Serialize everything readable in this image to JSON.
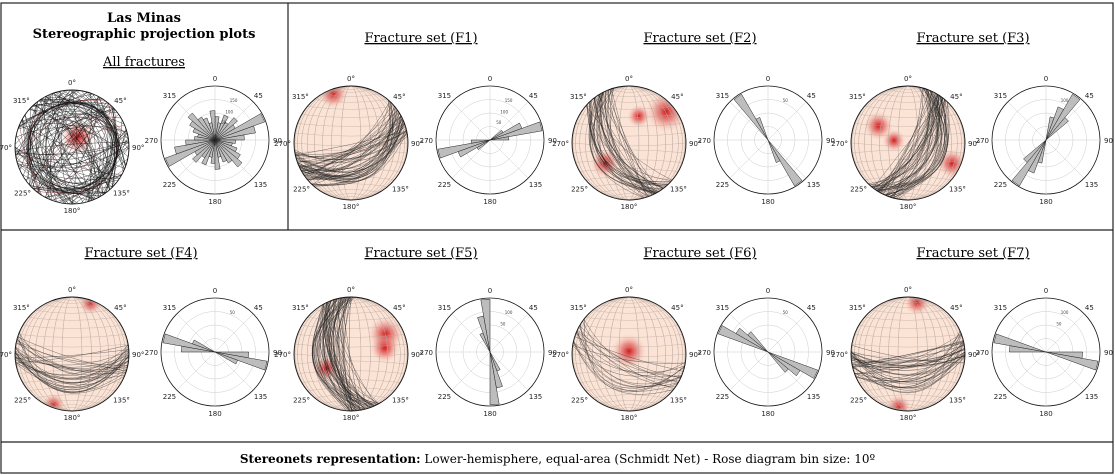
{
  "header": {
    "title_line1": "Las Minas",
    "title_line2": "Stereographic projection plots",
    "all_label": "All fractures"
  },
  "stereo_ticks": {
    "n": "0°",
    "ne": "45°",
    "e": "90°",
    "se": "135°",
    "s": "180°",
    "sw": "225°",
    "w": "270°",
    "nw": "315°"
  },
  "rose_ticks": {
    "n": "0",
    "ne": "45",
    "e": "90",
    "se": "135",
    "s": "180",
    "sw": "225",
    "w": "270",
    "nw": "315"
  },
  "panels": [
    {
      "label": "",
      "azimuths": [],
      "rose": [
        8,
        6,
        9,
        7,
        10,
        8,
        18,
        14,
        10,
        7,
        6,
        8,
        10,
        12,
        9,
        8,
        6,
        10
      ],
      "rose_ticks": [
        "150",
        "100",
        "50"
      ],
      "density": [
        {
          "az": 30,
          "r": 0.2,
          "s": 0.3
        }
      ],
      "gc_count": 140,
      "all": true
    },
    {
      "label": "Fracture set (F1)",
      "azimuths": [
        55,
        70
      ],
      "rose": [
        0,
        0,
        0,
        0,
        0,
        8,
        18,
        28,
        10,
        0,
        0,
        0,
        0,
        0,
        0,
        0,
        0,
        0
      ],
      "rose_ticks": [
        "150",
        "100",
        "50"
      ],
      "density": [
        {
          "az": 340,
          "r": 0.92,
          "s": 0.25
        }
      ],
      "gc_count": 60
    },
    {
      "label": "Fracture set (F2)",
      "azimuths": [
        145,
        150
      ],
      "rose": [
        0,
        0,
        0,
        0,
        0,
        0,
        0,
        0,
        0,
        0,
        0,
        0,
        0,
        0,
        22,
        10,
        0,
        0
      ],
      "rose_ticks": [
        "50"
      ],
      "density": [
        {
          "az": 50,
          "r": 0.85,
          "s": 0.35
        },
        {
          "az": 230,
          "r": 0.55,
          "s": 0.25
        },
        {
          "az": 20,
          "r": 0.5,
          "s": 0.2
        }
      ],
      "gc_count": 45
    },
    {
      "label": "Fracture set (F3)",
      "azimuths": [
        25,
        30
      ],
      "rose": [
        0,
        8,
        12,
        18,
        10,
        0,
        0,
        0,
        0,
        0,
        0,
        0,
        0,
        0,
        0,
        0,
        0,
        0
      ],
      "rose_ticks": [
        "100"
      ],
      "density": [
        {
          "az": 300,
          "r": 0.6,
          "s": 0.25
        },
        {
          "az": 115,
          "r": 0.85,
          "s": 0.25
        },
        {
          "az": 280,
          "r": 0.25,
          "s": 0.2
        }
      ],
      "gc_count": 60
    },
    {
      "label": "Fracture set (F4)",
      "azimuths": [
        95,
        100
      ],
      "rose": [
        0,
        0,
        0,
        0,
        0,
        0,
        0,
        0,
        0,
        14,
        22,
        10,
        0,
        0,
        0,
        0,
        0,
        0
      ],
      "rose_ticks": [
        "50"
      ],
      "density": [
        {
          "az": 20,
          "r": 0.95,
          "s": 0.2
        },
        {
          "az": 200,
          "r": 0.95,
          "s": 0.2
        }
      ],
      "gc_count": 35
    },
    {
      "label": "Fracture set (F5)",
      "azimuths": [
        165,
        170
      ],
      "rose": [
        0,
        0,
        0,
        0,
        0,
        0,
        0,
        0,
        0,
        0,
        0,
        0,
        0,
        0,
        0,
        10,
        18,
        26
      ],
      "rose_ticks": [
        "100",
        "50"
      ],
      "density": [
        {
          "az": 60,
          "r": 0.7,
          "s": 0.3
        },
        {
          "az": 80,
          "r": 0.6,
          "s": 0.25
        },
        {
          "az": 240,
          "r": 0.5,
          "s": 0.22
        }
      ],
      "gc_count": 65
    },
    {
      "label": "Fracture set (F6)",
      "azimuths": [
        110,
        115
      ],
      "rose": [
        0,
        0,
        0,
        0,
        0,
        0,
        0,
        0,
        0,
        0,
        0,
        20,
        14,
        10,
        0,
        0,
        0,
        0
      ],
      "rose_ticks": [
        "50"
      ],
      "density": [
        {
          "az": 0,
          "r": 0.05,
          "s": 0.3
        }
      ],
      "gc_count": 20
    },
    {
      "label": "Fracture set (F7)",
      "azimuths": [
        80,
        85
      ],
      "rose": [
        0,
        0,
        0,
        0,
        0,
        0,
        0,
        0,
        0,
        18,
        26,
        0,
        0,
        0,
        0,
        0,
        0,
        0
      ],
      "rose_ticks": [
        "100",
        "50"
      ],
      "density": [
        {
          "az": 10,
          "r": 0.92,
          "s": 0.22
        },
        {
          "az": 190,
          "r": 0.95,
          "s": 0.22
        }
      ],
      "gc_count": 40
    }
  ],
  "footer": {
    "bold": "Stereonets representation:",
    "text": " Lower-hemisphere, equal-area (Schmidt Net) - Rose diagram bin size: 10º"
  }
}
